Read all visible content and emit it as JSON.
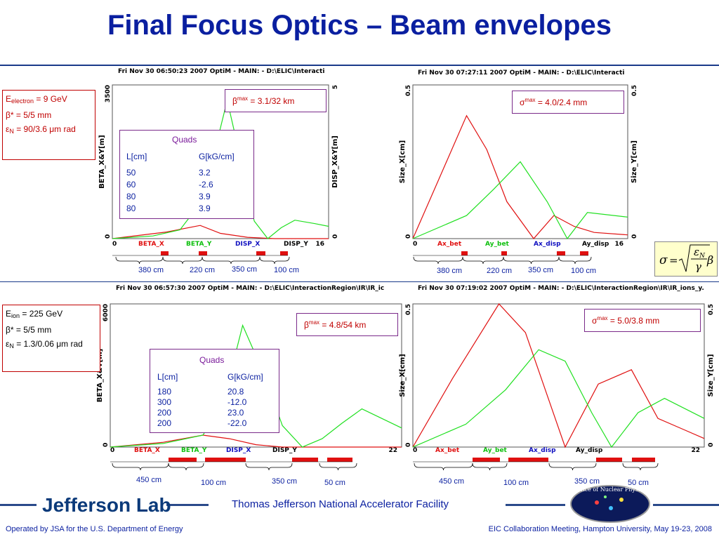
{
  "title": "Final Focus Optics – Beam envelopes",
  "footer": {
    "left": "Operated by JSA for the U.S. Department of Energy",
    "right": "EIC Collaboration Meeting, Hampton University, May 19-23, 2008",
    "lab": "Jefferson Lab",
    "facility": "Thomas Jefferson National Accelerator Facility",
    "seal_text": "Office of Nuclear Physics"
  },
  "formula": {
    "lhs": "σ",
    "eq": "=",
    "num": "ε",
    "num_sub": "N",
    "den": "γ",
    "beta": "β"
  },
  "electron": {
    "energy_label": "E",
    "energy_sub": "electron",
    "energy_value": " = 9 GeV",
    "beta_star": "β* =  5/5 mm",
    "emit_label": "ε",
    "emit_sub": "N",
    "emit_value": " = 90/3.6 μm rad",
    "beta_max_sym": "β",
    "beta_max_sup": "max",
    "beta_max": " =  3.1/32 km",
    "sigma_max_sym": "σ",
    "sigma_max_sup": "max",
    "sigma_max": " =  4.0/2.4 mm",
    "quads": {
      "title": "Quads",
      "col1": "L[cm]",
      "col2": "G[kG/cm]",
      "L": [
        "50",
        "60",
        "80",
        "80"
      ],
      "G": [
        "3.2",
        "-2.6",
        "3.9",
        "3.9"
      ]
    },
    "dims": [
      "380 cm",
      "220 cm",
      "350 cm",
      "100 cm"
    ]
  },
  "ion": {
    "energy_label": "E",
    "energy_sub": "ion",
    "energy_value": " = 225 GeV",
    "beta_star": "β* =  5/5 mm",
    "emit_label": "ε",
    "emit_sub": "N",
    "emit_value": " = 1.3/0.06 μm rad",
    "beta_max_sym": "β",
    "beta_max_sup": "max",
    "beta_max": " =  4.8/54 km",
    "sigma_max_sym": "σ",
    "sigma_max_sup": "max",
    "sigma_max": " =  5.0/3.8 mm",
    "quads": {
      "title": "Quads",
      "col1": "L[cm]",
      "col2": "G[kG/cm]",
      "L": [
        "180",
        "300",
        "200",
        "200"
      ],
      "G": [
        "20.8",
        "-12.0",
        "23.0",
        "-22.0"
      ]
    },
    "dims": [
      "450 cm",
      "100 cm",
      "350 cm",
      "50 cm"
    ]
  },
  "colors": {
    "title": "#0a1fa0",
    "red": "#e01010",
    "green": "#20e020",
    "blue": "#1010c0"
  },
  "chart_data": [
    {
      "type": "line",
      "header": "Fri Nov 30 06:50:23 2007    OptiM - MAIN: - D:\\ELIC\\Interacti",
      "ylabel": "BETA_X&Y[m]",
      "y2label": "DISP_X&Y[m]",
      "xlim": [
        0,
        16
      ],
      "ylim": [
        0,
        3500
      ],
      "y2lim": [
        0,
        5
      ],
      "xticks": [
        "0",
        "16"
      ],
      "yticks": [
        "0",
        "3500"
      ],
      "y2ticks": [
        "0",
        "5"
      ],
      "legend": [
        "BETA_X",
        "BETA_Y",
        "DISP_X",
        "DISP_Y"
      ],
      "series": [
        {
          "name": "BETA_X",
          "color": "red",
          "x": [
            0,
            4,
            6.5,
            8,
            10,
            12,
            14,
            16
          ],
          "y": [
            0,
            150,
            300,
            120,
            30,
            0,
            0,
            0
          ]
        },
        {
          "name": "BETA_Y",
          "color": "green",
          "x": [
            0,
            3,
            5,
            6.5,
            7.5,
            8.5,
            9.5,
            10.5,
            11.5,
            12.5,
            13.5,
            15,
            16
          ],
          "y": [
            0,
            60,
            200,
            800,
            1900,
            3150,
            1800,
            400,
            0,
            250,
            420,
            340,
            280
          ]
        }
      ]
    },
    {
      "type": "line",
      "header": "Fri Nov 30 07:27:11 2007    OptiM - MAIN: - D:\\ELIC\\Interacti",
      "ylabel": "Size_X[cm]",
      "y2label": "Size_Y[cm]",
      "xlim": [
        0,
        16
      ],
      "ylim": [
        0,
        0.5
      ],
      "y2lim": [
        0,
        0.5
      ],
      "xticks": [
        "0",
        "16"
      ],
      "yticks": [
        "0",
        "0.5"
      ],
      "y2ticks": [
        "0",
        "0.5"
      ],
      "legend": [
        "Ax_bet",
        "Ay_bet",
        "Ax_disp",
        "Ay_disp"
      ],
      "series": [
        {
          "name": "Ax_bet",
          "color": "red",
          "x": [
            0,
            2,
            4,
            5.5,
            7,
            9,
            10.5,
            12,
            13.5,
            16
          ],
          "y": [
            0,
            0.2,
            0.4,
            0.29,
            0.12,
            0,
            0.075,
            0.04,
            0.02,
            0.012
          ]
        },
        {
          "name": "Ay_bet",
          "color": "green",
          "x": [
            0,
            4,
            6,
            8,
            10,
            11.5,
            13,
            16
          ],
          "y": [
            0,
            0.075,
            0.16,
            0.25,
            0.12,
            0,
            0.085,
            0.07
          ]
        }
      ]
    },
    {
      "type": "line",
      "header": "Fri Nov 30 06:57:30 2007    OptiM - MAIN: - D:\\ELIC\\InteractionRegion\\IR\\IR_ic",
      "ylabel": "BETA_X&Y[m]",
      "xlim": [
        0,
        22
      ],
      "ylim": [
        0,
        6000
      ],
      "xticks": [
        "0",
        "22"
      ],
      "yticks": [
        "0",
        "6000"
      ],
      "legend": [
        "BETA_X",
        "BETA_Y",
        "DISP_X",
        "DISP_Y"
      ],
      "series": [
        {
          "name": "BETA_X",
          "color": "red",
          "x": [
            0,
            4,
            7,
            9,
            11,
            13,
            16,
            22
          ],
          "y": [
            0,
            200,
            500,
            350,
            100,
            0,
            0,
            0
          ]
        },
        {
          "name": "BETA_Y",
          "color": "green",
          "x": [
            0,
            4,
            7,
            8.5,
            10,
            11.5,
            13,
            14.5,
            16,
            17.5,
            19,
            20.5,
            22
          ],
          "y": [
            0,
            150,
            500,
            1800,
            5100,
            3200,
            900,
            0,
            350,
            1000,
            1600,
            1200,
            800
          ]
        }
      ]
    },
    {
      "type": "line",
      "header": "Fri Nov 30 07:19:02 2007    OptiM - MAIN: - D:\\ELIC\\InteractionRegion\\IR\\IR_ions_y.",
      "ylabel": "Size_X[cm]",
      "y2label": "Size_Y[cm]",
      "xlim": [
        0,
        22
      ],
      "ylim": [
        0,
        0.5
      ],
      "y2lim": [
        0,
        0.5
      ],
      "xticks": [
        "0",
        "22"
      ],
      "yticks": [
        "0",
        "0.5"
      ],
      "y2ticks": [
        "0",
        "0.5"
      ],
      "legend": [
        "Ax_bet",
        "Ay_bet",
        "Ax_disp",
        "Ay_disp"
      ],
      "series": [
        {
          "name": "Ax_bet",
          "color": "red",
          "x": [
            0,
            3,
            6.5,
            8.5,
            11.5,
            14,
            16.5,
            18.5,
            20.5,
            22
          ],
          "y": [
            0,
            0.24,
            0.5,
            0.4,
            0,
            0.22,
            0.27,
            0.1,
            0.06,
            0.03
          ]
        },
        {
          "name": "Ay_bet",
          "color": "green",
          "x": [
            0,
            4,
            7,
            9.5,
            11.5,
            13.5,
            15,
            17,
            19,
            22
          ],
          "y": [
            0,
            0.08,
            0.2,
            0.34,
            0.3,
            0.12,
            0,
            0.12,
            0.17,
            0.1
          ]
        }
      ]
    }
  ]
}
